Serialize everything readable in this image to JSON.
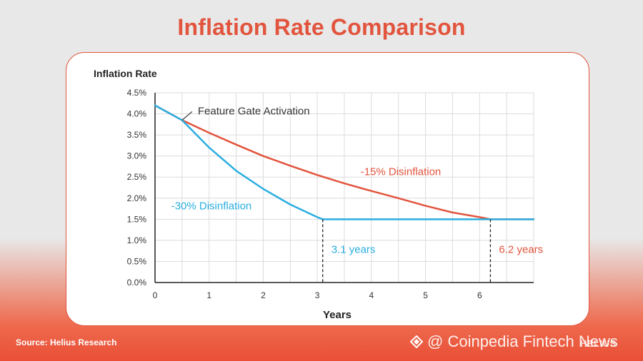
{
  "title": "Inflation Rate Comparison",
  "source": "Source: Helius Research",
  "watermark": "@ Coinpedia Fintech News",
  "brand": "HELIUS",
  "colors": {
    "accent": "#e2543d",
    "blue": "#2aaee0",
    "red": "#e2543d"
  },
  "chart_data": {
    "type": "line",
    "title": "Inflation Rate Comparison",
    "xlabel": "Years",
    "ylabel": "Inflation Rate",
    "xlim": [
      0,
      7
    ],
    "ylim": [
      0,
      4.5
    ],
    "x_ticks": [
      "0",
      "1",
      "2",
      "3",
      "4",
      "5",
      "6"
    ],
    "x_tick_values": [
      0,
      1,
      2,
      3,
      4,
      5,
      6
    ],
    "y_ticks": [
      "0.0%",
      "0.5%",
      "1.0%",
      "1.5%",
      "2.0%",
      "2.5%",
      "3.0%",
      "3.5%",
      "4.0%",
      "4.5%"
    ],
    "y_tick_values": [
      0,
      0.5,
      1,
      1.5,
      2,
      2.5,
      3,
      3.5,
      4,
      4.5
    ],
    "grid": true,
    "series": [
      {
        "name": "-15% Disinflation",
        "color": "#e2543d",
        "x": [
          0,
          0.5,
          1,
          1.5,
          2,
          2.5,
          3,
          3.5,
          4,
          4.5,
          5,
          5.5,
          6,
          6.2,
          7
        ],
        "y": [
          4.2,
          3.85,
          3.55,
          3.27,
          3.0,
          2.77,
          2.55,
          2.35,
          2.17,
          2.0,
          1.82,
          1.66,
          1.55,
          1.5,
          1.5
        ]
      },
      {
        "name": "-30% Disinflation",
        "color": "#2aaee0",
        "x": [
          0,
          0.5,
          1,
          1.5,
          2,
          2.5,
          3,
          3.1,
          7
        ],
        "y": [
          4.2,
          3.85,
          3.2,
          2.65,
          2.22,
          1.85,
          1.55,
          1.5,
          1.5
        ]
      }
    ],
    "annotations": [
      {
        "text": "Feature Gate Activation",
        "x": 0.5,
        "y": 3.85,
        "color": "#333333"
      },
      {
        "text": "-15% Disinflation",
        "x": 3.8,
        "y": 2.55,
        "color": "#e2543d"
      },
      {
        "text": "-30% Disinflation",
        "x": 0.3,
        "y": 1.73,
        "color": "#2aaee0"
      },
      {
        "text": "3.1 years",
        "x": 3.1,
        "y": 0.7,
        "color": "#2aaee0",
        "marker_x": 3.1
      },
      {
        "text": "6.2 years",
        "x": 6.2,
        "y": 0.7,
        "color": "#e2543d",
        "marker_x": 6.2
      }
    ]
  }
}
